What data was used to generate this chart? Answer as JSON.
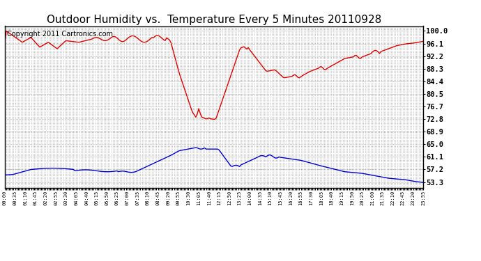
{
  "title": "Outdoor Humidity vs.  Temperature Every 5 Minutes 20110928",
  "copyright": "Copyright 2011 Cartronics.com",
  "yticks": [
    53.3,
    57.2,
    61.1,
    65.0,
    68.9,
    72.8,
    76.7,
    80.5,
    84.4,
    88.3,
    92.2,
    96.1,
    100.0
  ],
  "ylim": [
    51.5,
    101.5
  ],
  "bg_color": "#ffffff",
  "grid_color": "#aaaaaa",
  "red_color": "#dd0000",
  "blue_color": "#0000cc",
  "title_fontsize": 11,
  "copyright_fontsize": 7,
  "xtick_fontsize": 5.0,
  "ytick_fontsize": 7.5,
  "n_points": 288,
  "figwidth": 6.9,
  "figheight": 3.75,
  "dpi": 100
}
